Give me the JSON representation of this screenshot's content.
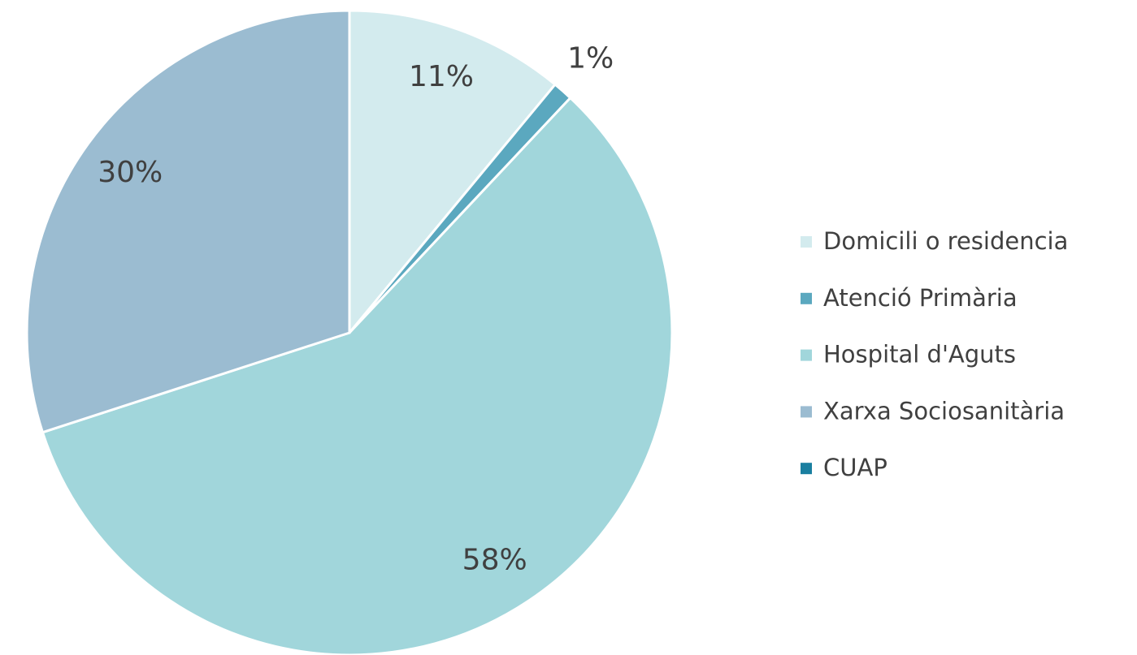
{
  "chart_data": {
    "type": "pie",
    "categories": [
      "Domicili o residencia",
      "Atenció Primària",
      "Hospital d'Aguts",
      "Xarxa Sociosanitària",
      "CUAP"
    ],
    "values": [
      11,
      1,
      58,
      30,
      0
    ],
    "value_labels": [
      "11%",
      "1%",
      "58%",
      "30%",
      null
    ],
    "colors": [
      "#d3ebee",
      "#5ba8bf",
      "#a1d6db",
      "#9bbcd1",
      "#1a7fa0"
    ],
    "legend": "right"
  }
}
